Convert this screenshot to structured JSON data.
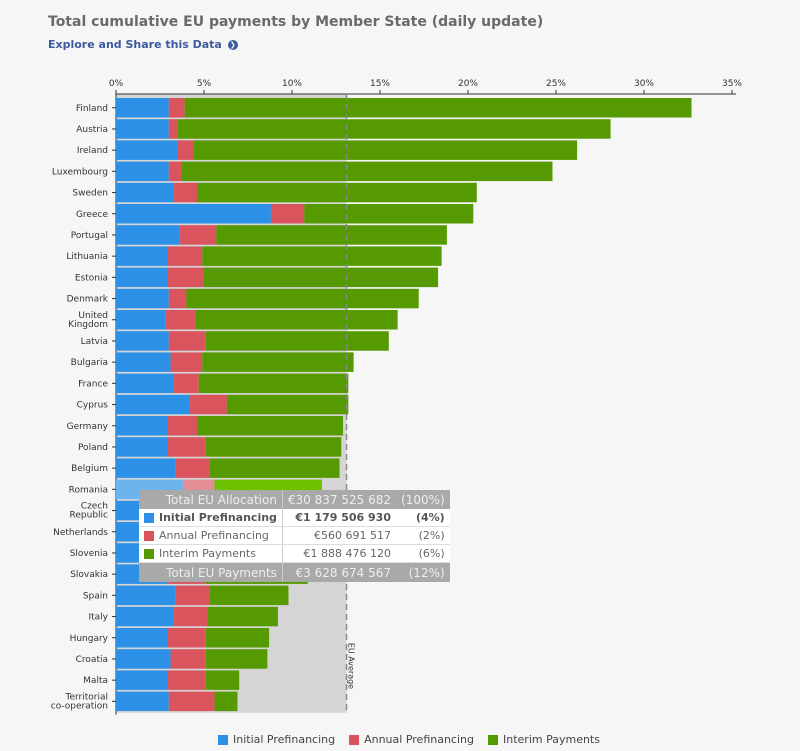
{
  "header": {
    "title": "Total cumulative EU payments by Member State (daily update)",
    "explore_link": "Explore and Share this Data",
    "explore_icon": "circle-arrow-right-icon"
  },
  "colors": {
    "initial": "#2b90e6",
    "annual": "#d9545c",
    "interim": "#559a00",
    "initial_highlight": "#6db4ee",
    "annual_highlight": "#e38f95",
    "interim_highlight": "#6cc100",
    "eu_avg_band": "#d5d5d5"
  },
  "chart_data": {
    "type": "bar",
    "orientation": "horizontal",
    "stacked": true,
    "title": "Total cumulative EU payments by Member State (daily update)",
    "xlabel": "",
    "ylabel": "",
    "xlim": [
      0,
      35
    ],
    "x_ticks": [
      "0%",
      "5%",
      "10%",
      "15%",
      "20%",
      "25%",
      "30%",
      "35%"
    ],
    "x_tick_values": [
      0,
      5,
      10,
      15,
      20,
      25,
      30,
      35
    ],
    "legend_position": "bottom",
    "categories": [
      "Finland",
      "Austria",
      "Ireland",
      "Luxembourg",
      "Sweden",
      "Greece",
      "Portugal",
      "Lithuania",
      "Estonia",
      "Denmark",
      "United Kingdom",
      "Latvia",
      "Bulgaria",
      "France",
      "Cyprus",
      "Germany",
      "Poland",
      "Belgium",
      "Romania",
      "Czech Republic",
      "Netherlands",
      "Slovenia",
      "Slovakia",
      "Spain",
      "Italy",
      "Hungary",
      "Croatia",
      "Malta",
      "Territorial co-operation"
    ],
    "series": [
      {
        "name": "Initial Prefinancing",
        "key": "initial",
        "values": [
          3.0,
          3.0,
          3.5,
          3.0,
          3.3,
          8.8,
          3.6,
          2.9,
          2.9,
          3.0,
          2.8,
          3.0,
          3.1,
          3.3,
          4.2,
          2.9,
          2.9,
          3.4,
          3.8,
          3.0,
          3.0,
          3.0,
          2.9,
          3.4,
          3.3,
          2.9,
          3.1,
          2.9,
          3.0
        ]
      },
      {
        "name": "Annual Prefinancing",
        "key": "annual",
        "values": [
          0.9,
          0.5,
          0.9,
          0.7,
          1.3,
          1.9,
          2.1,
          2.0,
          2.1,
          1.0,
          1.7,
          2.1,
          1.8,
          1.4,
          2.1,
          1.7,
          2.2,
          1.9,
          1.8,
          2.2,
          2.2,
          2.2,
          2.2,
          1.9,
          1.9,
          2.2,
          2.0,
          2.2,
          2.6
        ]
      },
      {
        "name": "Interim Payments",
        "key": "interim",
        "values": [
          28.8,
          24.6,
          21.8,
          21.1,
          15.9,
          9.6,
          13.1,
          13.6,
          13.3,
          13.2,
          11.5,
          10.4,
          8.6,
          8.5,
          6.9,
          8.3,
          7.7,
          7.4,
          6.1,
          5.2,
          5.0,
          5.0,
          5.8,
          4.5,
          4.0,
          3.6,
          3.5,
          1.9,
          1.3
        ]
      }
    ],
    "reference_line": {
      "label": "EU Average",
      "value": 13.1
    },
    "highlighted_category": "Romania",
    "tooltip": {
      "rows": [
        {
          "label": "Total EU Allocation",
          "amount": "€30 837 525 682",
          "pct": "(100%)",
          "style": "header"
        },
        {
          "label": "Initial Prefinancing",
          "amount": "€1 179 506 930",
          "pct": "(4%)",
          "style": "bold",
          "series": "initial"
        },
        {
          "label": "Annual Prefinancing",
          "amount": "€560 691 517",
          "pct": "(2%)",
          "style": "normal",
          "series": "annual"
        },
        {
          "label": "Interim Payments",
          "amount": "€1 888 476 120",
          "pct": "(6%)",
          "style": "normal",
          "series": "interim"
        },
        {
          "label": "Total EU Payments",
          "amount": "€3 628 674 567",
          "pct": "(12%)",
          "style": "header"
        }
      ]
    }
  },
  "legend": [
    {
      "label": "Initial Prefinancing",
      "key": "initial"
    },
    {
      "label": "Annual Prefinancing",
      "key": "annual"
    },
    {
      "label": "Interim Payments",
      "key": "interim"
    }
  ]
}
